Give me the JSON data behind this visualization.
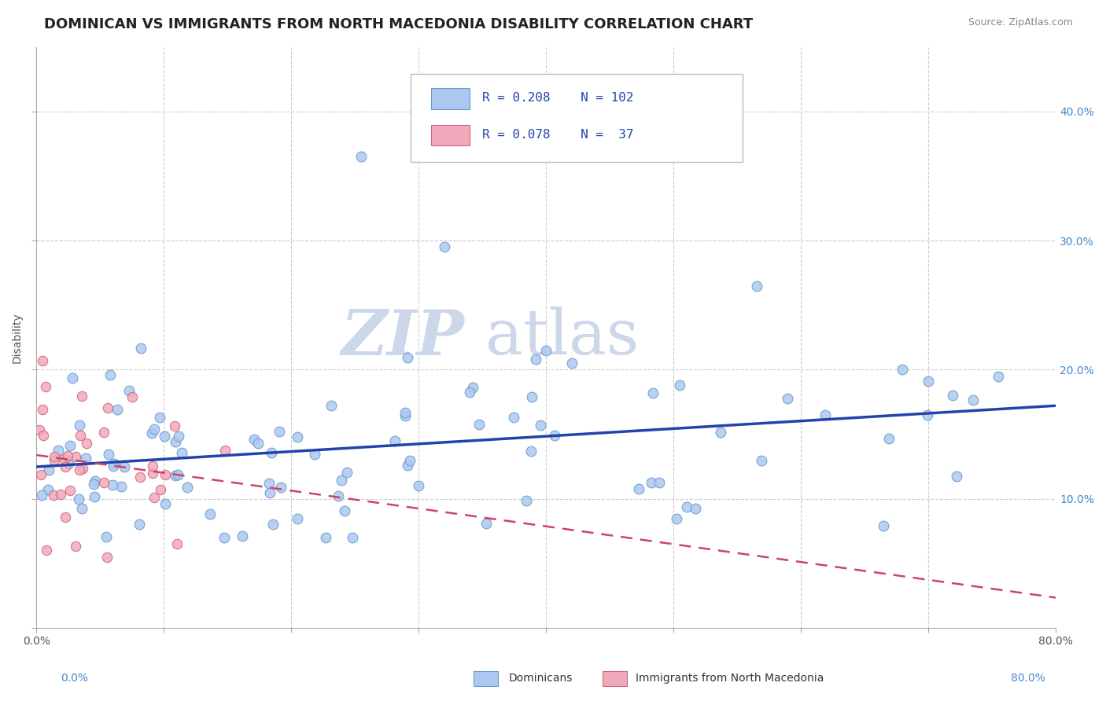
{
  "title": "DOMINICAN VS IMMIGRANTS FROM NORTH MACEDONIA DISABILITY CORRELATION CHART",
  "source": "Source: ZipAtlas.com",
  "ylabel": "Disability",
  "xlim": [
    0.0,
    0.8
  ],
  "ylim": [
    0.0,
    0.45
  ],
  "xticks": [
    0.0,
    0.1,
    0.2,
    0.3,
    0.4,
    0.5,
    0.6,
    0.7,
    0.8
  ],
  "xticklabels": [
    "0.0%",
    "",
    "",
    "",
    "",
    "",
    "",
    "",
    "80.0%"
  ],
  "yticks": [
    0.0,
    0.1,
    0.2,
    0.3,
    0.4
  ],
  "yticklabels": [
    "",
    "",
    "",
    "",
    ""
  ],
  "right_ytick_labels": [
    "10.0%",
    "20.0%",
    "30.0%",
    "40.0%"
  ],
  "right_ytick_vals": [
    0.1,
    0.2,
    0.3,
    0.4
  ],
  "dominican_R": 0.208,
  "dominican_N": 102,
  "macedonia_R": 0.078,
  "macedonia_N": 37,
  "dominican_color": "#adc8f0",
  "dominican_edge": "#6699cc",
  "macedonia_color": "#f0aabb",
  "macedonia_edge": "#cc6677",
  "trend_dominican_color": "#2244aa",
  "trend_macedonia_color": "#cc4466",
  "background_color": "#ffffff",
  "grid_color": "#cccccc",
  "title_fontsize": 13,
  "axis_label_fontsize": 10,
  "tick_fontsize": 10,
  "right_ytick_color": "#4488cc",
  "watermark_color": "#ccd8ea",
  "legend_box_color": "#dddddd",
  "bottom_legend_label1": "Dominicans",
  "bottom_legend_label2": "Immigrants from North Macedonia"
}
